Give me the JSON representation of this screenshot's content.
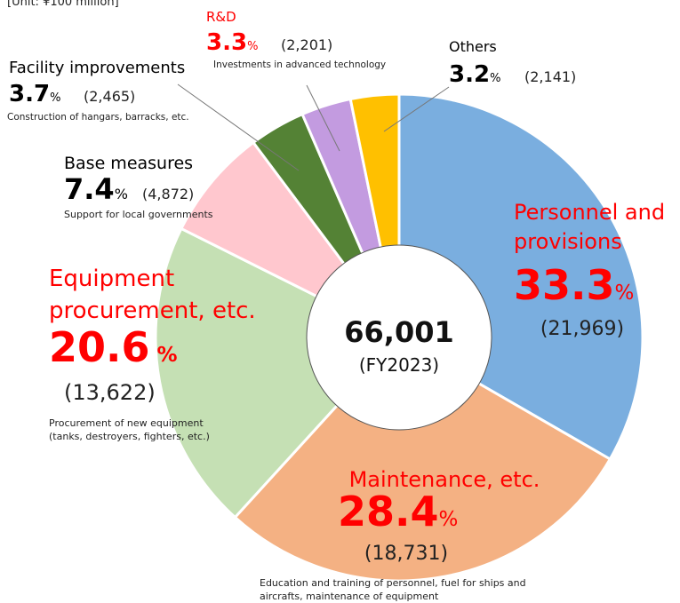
{
  "chart_data": {
    "type": "donut",
    "unit_note": "[Unit: ¥100 million]",
    "center_value": "66,001",
    "center_label": "(FY2023)",
    "categories": [
      "Personnel and provisions",
      "Maintenance, etc.",
      "Equipment procurement, etc.",
      "Base measures",
      "Facility improvements",
      "R&D",
      "Others"
    ],
    "values": [
      33.3,
      28.4,
      20.6,
      7.4,
      3.7,
      3.3,
      3.2
    ],
    "value_labels": [
      "33.3%",
      "28.4%",
      "20.6 %",
      "7.4%",
      "3.7%",
      "3.3%",
      "3.2%"
    ],
    "amount_labels": [
      "(21,969)",
      "(18,731)",
      "(13,622)",
      "(4,872)",
      "(2,465)",
      "(2,201)",
      "(2,141)"
    ],
    "descriptions": [
      [],
      [
        "Education and training of personnel, fuel for ships and",
        "aircrafts, maintenance of equipment"
      ],
      [
        "Procurement of new equipment",
        "(tanks, destroyers, fighters, etc.)"
      ],
      [
        "Support for local governments"
      ],
      [
        "Construction of hangars, barracks, etc."
      ],
      [
        "Investments in advanced technology"
      ],
      []
    ],
    "colors": [
      "#7aaedf",
      "#f4b183",
      "#c5e0b4",
      "#ffc7ce",
      "#548235",
      "#c39be0",
      "#ffc000"
    ],
    "label_colors": [
      "#ff0000",
      "#ff0000",
      "#ff0000",
      "#000000",
      "#000000",
      "#ff0000",
      "#000000"
    ]
  }
}
